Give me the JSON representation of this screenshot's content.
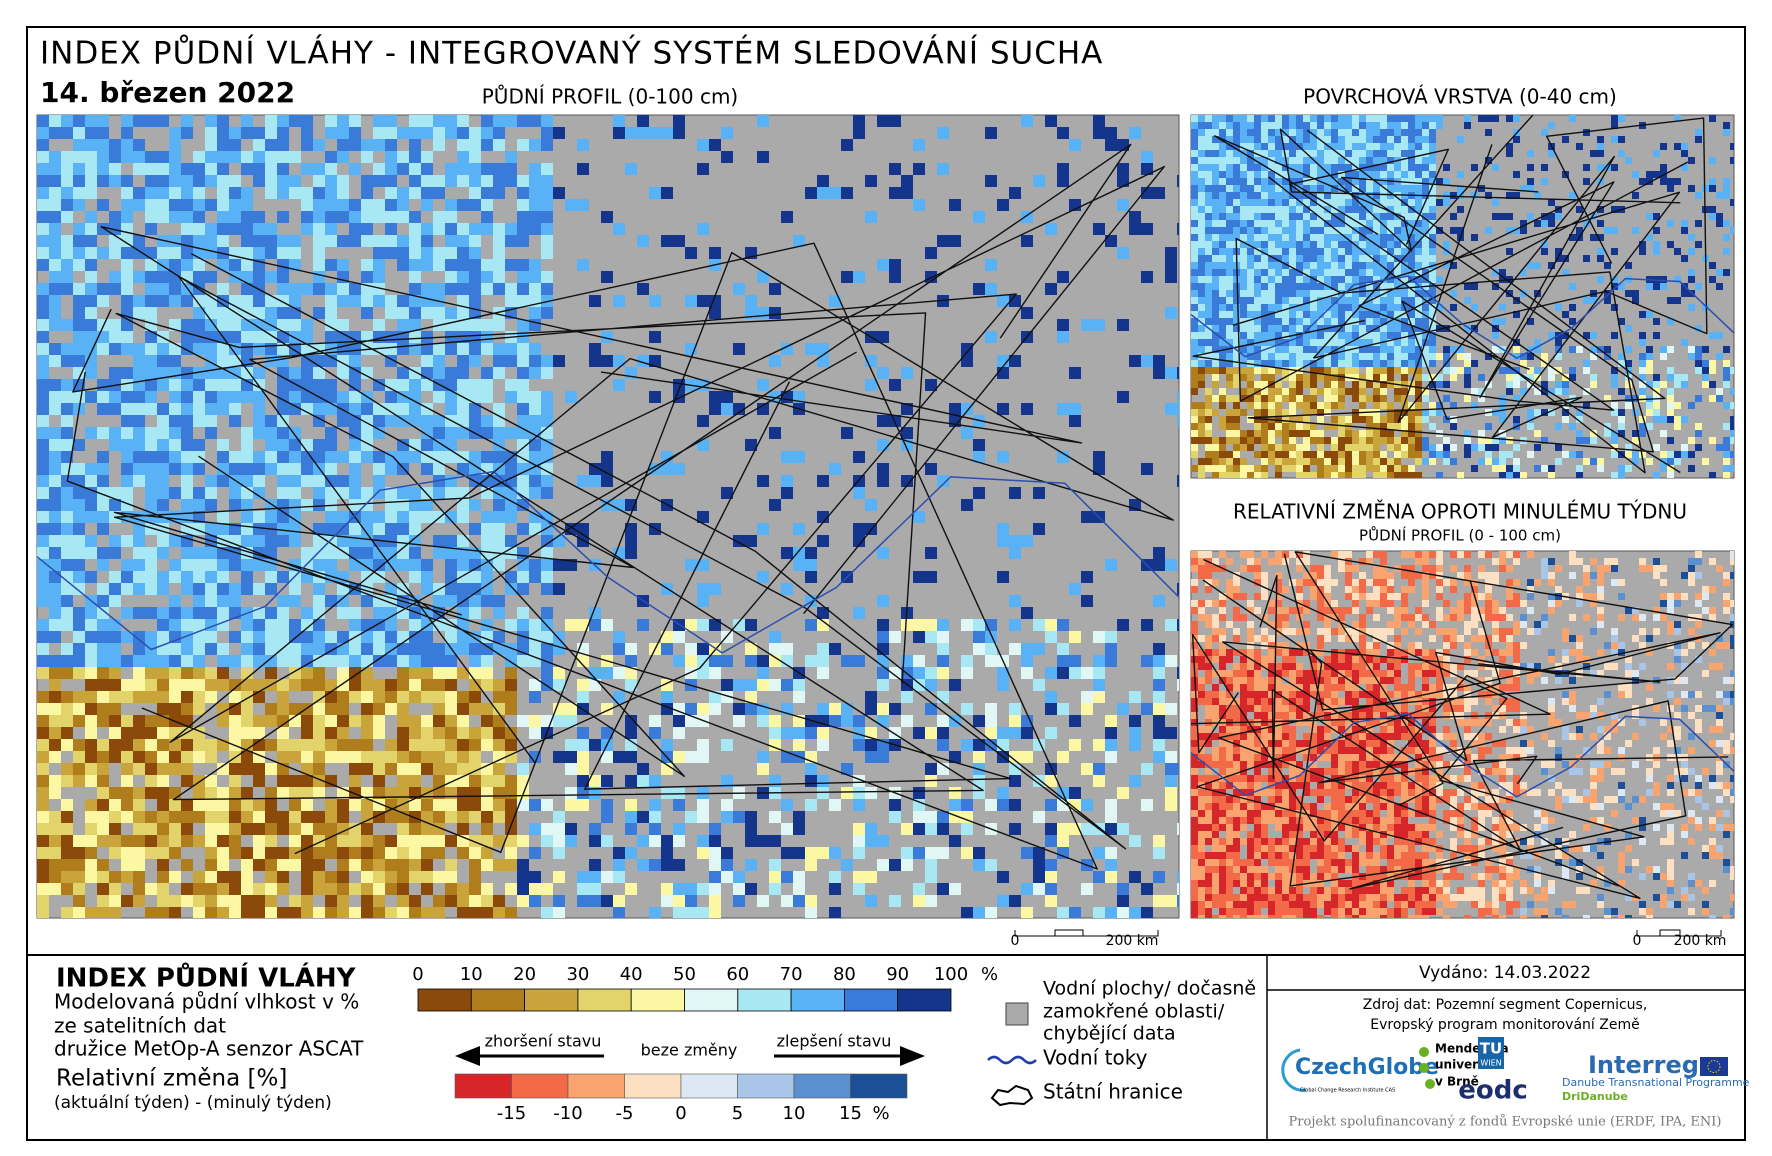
{
  "header": {
    "title": "INDEX PŮDNÍ VLÁHY - INTEGROVANÝ SYSTÉM SLEDOVÁNÍ SUCHA",
    "date": "14. březen 2022"
  },
  "maps": [
    {
      "title": "PŮDNÍ PROFIL (0-100 cm)",
      "scalebar": [
        "0",
        "200 km"
      ]
    },
    {
      "title": "POVRCHOVÁ VRSTVA (0-40 cm)"
    },
    {
      "title": "RELATIVNÍ ZMĚNA OPROTI MINULÉMU TÝDNU",
      "subtitle": "PŮDNÍ PROFIL (0 - 100 cm)",
      "scalebar": [
        "0",
        "200 km"
      ]
    }
  ],
  "legend": {
    "title": "INDEX PŮDNÍ VLÁHY",
    "description": [
      "Modelovaná půdní vlhkost v %",
      "ze satelitních dat",
      "družice MetOp-A senzor ASCAT"
    ],
    "change_title": "Relativní změna [%]",
    "change_description": "(aktuální týden) - (minulý týden)",
    "index_scale": {
      "ticks": [
        0,
        10,
        20,
        30,
        40,
        50,
        60,
        70,
        80,
        90,
        100
      ],
      "unit": "%",
      "colors": [
        "#8c4a0a",
        "#b07d1c",
        "#c9a43a",
        "#e3d36b",
        "#fbf7a2",
        "#e0f7f5",
        "#a8e8f5",
        "#58b2f5",
        "#3a7ad9",
        "#15348c"
      ]
    },
    "change_scale": {
      "ticks": [
        -15,
        -10,
        -5,
        0,
        5,
        10,
        15
      ],
      "unit": "%",
      "colors": [
        "#d7262a",
        "#f26a48",
        "#f9a36e",
        "#fde0c2",
        "#dce8f3",
        "#a9c6e8",
        "#5a8fd0",
        "#1c4f96"
      ],
      "worse": "zhoršení stavu",
      "same": "beze změny",
      "better": "zlepšení stavu"
    },
    "symbols": {
      "water": [
        "Vodní plochy/ dočasně",
        "zamokřené oblasti/",
        "chybějící data"
      ],
      "rivers": "Vodní toky",
      "borders": "Státní hranice"
    }
  },
  "footer": {
    "issued": "Vydáno: 14.03.2022",
    "source": [
      "Zdroj dat: Pozemní segment Copernicus,",
      "Evropský program monitorování Země"
    ],
    "logos": {
      "czechglobe": "CzechGlobe",
      "czechglobe_sub": "Global Change Research Institute CAS",
      "mendel": [
        "Mendelova",
        "univerzita",
        "v Brně"
      ],
      "tu": [
        "TU",
        "WIEN"
      ],
      "eodc": "eodc",
      "interreg": "Interreg",
      "danube": "Danube Transnational Programme",
      "dridanube": "DriDanube"
    },
    "funding": "Projekt spolufinancovaný z fondů Evropské unie (ERDF, IPA, ENI)"
  }
}
